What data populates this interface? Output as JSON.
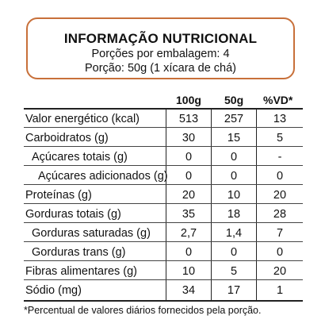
{
  "header": {
    "title": "INFORMAÇÃO NUTRICIONAL",
    "servings_per_package": "Porções por embalagem: 4",
    "serving_size": "Porção: 50g (1 xícara de chá)"
  },
  "table": {
    "columns": [
      "100g",
      "50g",
      "%VD*"
    ],
    "rows": [
      {
        "label": "Valor energético  (kcal)",
        "indent": 0,
        "v100": "513",
        "v50": "257",
        "vd": "13"
      },
      {
        "label": "Carboidratos (g)",
        "indent": 0,
        "v100": "30",
        "v50": "15",
        "vd": "5"
      },
      {
        "label": "Açúcares totais (g)",
        "indent": 1,
        "v100": "0",
        "v50": "0",
        "vd": "-"
      },
      {
        "label": "Açúcares adicionados (g)",
        "indent": 2,
        "v100": "0",
        "v50": "0",
        "vd": "0"
      },
      {
        "label": "Proteínas (g)",
        "indent": 0,
        "v100": "20",
        "v50": "10",
        "vd": "20"
      },
      {
        "label": "Gorduras totais (g)",
        "indent": 0,
        "v100": "35",
        "v50": "18",
        "vd": "28"
      },
      {
        "label": "Gorduras saturadas (g)",
        "indent": 1,
        "v100": "2,7",
        "v50": "1,4",
        "vd": "7"
      },
      {
        "label": "Gorduras trans (g)",
        "indent": 1,
        "v100": "0",
        "v50": "0",
        "vd": "0"
      },
      {
        "label": "Fibras alimentares (g)",
        "indent": 0,
        "v100": "10",
        "v50": "5",
        "vd": "20"
      },
      {
        "label": "Sódio (mg)",
        "indent": 0,
        "v100": "34",
        "v50": "17",
        "vd": "1"
      }
    ]
  },
  "footnote": "*Percentual de valores diários fornecidos pela porção.",
  "colors": {
    "border_accent": "#c8703a",
    "text": "#111111"
  }
}
